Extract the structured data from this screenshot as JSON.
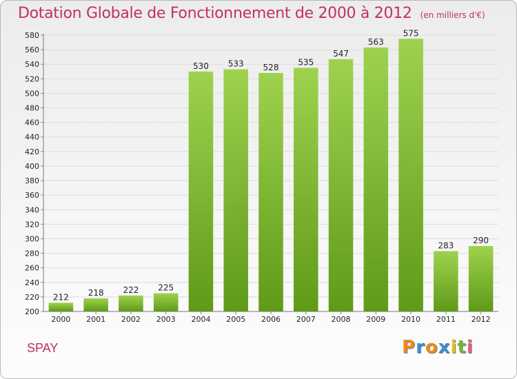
{
  "header": {
    "title": "Dotation Globale de Fonctionnement de 2000 à 2012",
    "subtitle": "(en milliers d'€)"
  },
  "footer": {
    "commune": "SPAY",
    "logo_letters": [
      "P",
      "r",
      "o",
      "x",
      "i",
      "t",
      "i"
    ]
  },
  "colors": {
    "bar_light": "#9ed24e",
    "bar_dark": "#5f9a19",
    "grid": "#dcdcdc",
    "title": "#c0325a",
    "logo": [
      "#f08a1d",
      "#3b8fd0",
      "#f08a1d",
      "#3b8fd0",
      "#e2c11a",
      "#6fb83a",
      "#e65c8a"
    ]
  },
  "chart_data": {
    "type": "bar",
    "categories": [
      "2000",
      "2001",
      "2002",
      "2003",
      "2004",
      "2005",
      "2006",
      "2007",
      "2008",
      "2009",
      "2010",
      "2011",
      "2012"
    ],
    "values": [
      212,
      218,
      222,
      225,
      530,
      533,
      528,
      535,
      547,
      563,
      575,
      283,
      290
    ],
    "ylim": [
      200,
      580
    ],
    "ytick_step": 20,
    "grid": true,
    "data_labels": true
  }
}
